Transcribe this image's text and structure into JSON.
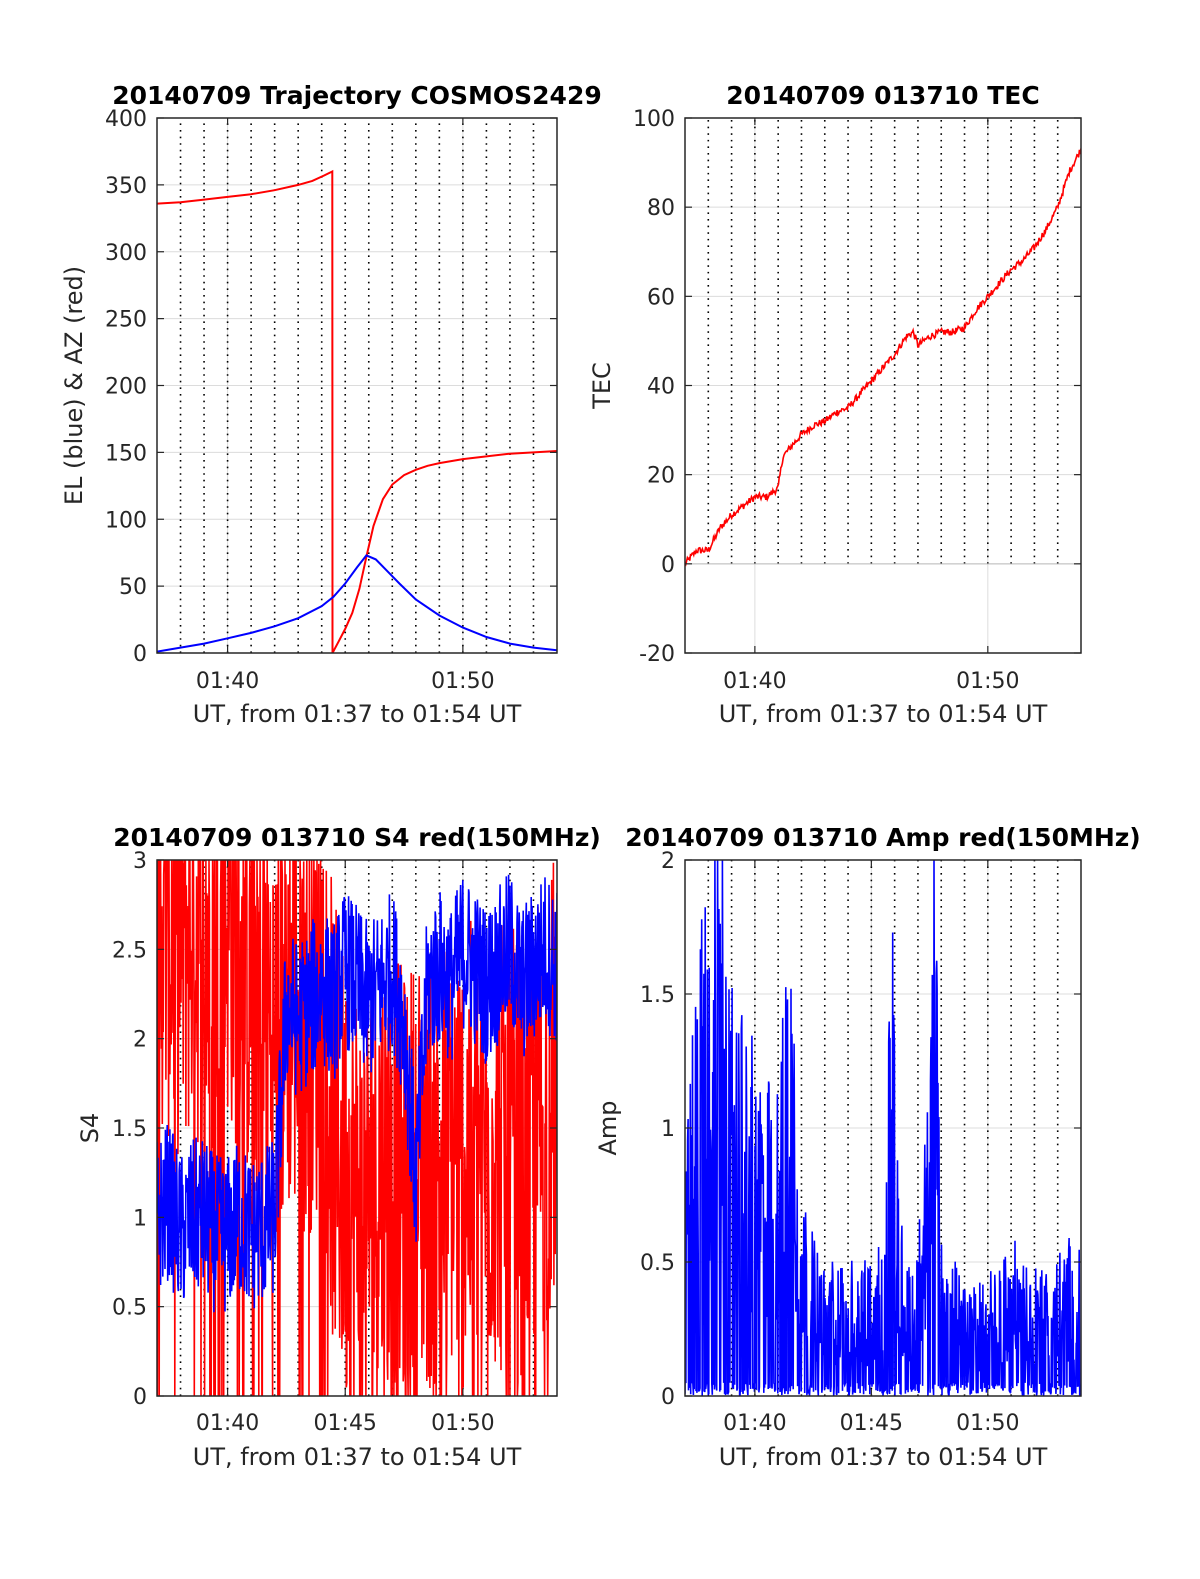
{
  "figure": {
    "background": "#ffffff",
    "axis_color": "#262626",
    "grid_solid_color": "#dcdcdc",
    "grid_dotted_color": "#000000"
  },
  "chart_data": [
    {
      "id": "trajectory",
      "type": "line",
      "title": "20140709 Trajectory COSMOS2429",
      "xlabel": "UT, from 01:37 to 01:54 UT",
      "ylabel": "EL (blue) & AZ (red)",
      "xlim": [
        97,
        114
      ],
      "ylim": [
        0,
        400
      ],
      "x_unit": "minutes after 00:00 UT",
      "x_ticks": [
        100,
        110
      ],
      "x_tick_labels": [
        "01:40",
        "01:50"
      ],
      "y_ticks": [
        0,
        50,
        100,
        150,
        200,
        250,
        300,
        350,
        400
      ],
      "y_tick_labels": [
        "0",
        "50",
        "100",
        "150",
        "200",
        "250",
        "300",
        "350",
        "400"
      ],
      "dotted_grid_x": [
        98,
        99,
        100,
        101,
        102,
        103,
        104,
        105,
        106,
        107,
        108,
        109,
        110,
        111,
        112,
        113
      ],
      "grid": true,
      "series": [
        {
          "color": "#ff0000",
          "x": [
            97,
            98,
            99,
            100,
            101,
            102,
            103,
            103.6,
            104.1,
            104.45,
            104.46,
            104.7,
            105.0,
            105.3,
            105.6,
            105.9,
            106.2,
            106.6,
            107.0,
            107.5,
            108.0,
            108.5,
            109.0,
            110,
            111,
            112,
            113,
            114
          ],
          "y": [
            336,
            337,
            339,
            341,
            343,
            346,
            350,
            353,
            357,
            360,
            0,
            8,
            18,
            30,
            48,
            72,
            95,
            115,
            126,
            133,
            137,
            140,
            142,
            145,
            147,
            149,
            150,
            151
          ]
        },
        {
          "color": "#0000ff",
          "x": [
            97,
            98,
            99,
            100,
            101,
            102,
            103,
            104,
            104.5,
            105,
            105.5,
            105.9,
            106.3,
            106.8,
            107.3,
            108,
            109,
            110,
            111,
            112,
            113,
            114
          ],
          "y": [
            1,
            4,
            7,
            11,
            15,
            20,
            26,
            35,
            42,
            52,
            64,
            73,
            70,
            61,
            52,
            40,
            28,
            19,
            12,
            7,
            4,
            2
          ]
        }
      ]
    },
    {
      "id": "tec",
      "type": "line",
      "title": "20140709 013710 TEC",
      "xlabel": "UT, from 01:37 to 01:54 UT",
      "ylabel": "TEC",
      "xlim": [
        97,
        114
      ],
      "ylim": [
        -20,
        100
      ],
      "x_unit": "minutes after 00:00 UT",
      "x_ticks": [
        100,
        110
      ],
      "x_tick_labels": [
        "01:40",
        "01:50"
      ],
      "y_ticks": [
        -20,
        0,
        20,
        40,
        60,
        80,
        100
      ],
      "y_tick_labels": [
        "-20",
        "0",
        "20",
        "40",
        "60",
        "80",
        "100"
      ],
      "dotted_grid_x": [
        98,
        99,
        100,
        101,
        102,
        103,
        104,
        105,
        106,
        107,
        108,
        109,
        110,
        111,
        112,
        113
      ],
      "dotted_grid_y_range": [
        0,
        100
      ],
      "grid": true,
      "series": [
        {
          "color": "#ff0000",
          "x": [
            97,
            97.5,
            98,
            98.5,
            99,
            99.5,
            100,
            100.5,
            101,
            101.2,
            101.5,
            102,
            102.5,
            103,
            103.5,
            104,
            104.5,
            105,
            105.5,
            106,
            106.5,
            106.8,
            107,
            107.5,
            108,
            108.5,
            109,
            109.5,
            110,
            110.5,
            111,
            111.5,
            112,
            112.5,
            113,
            113.5,
            114
          ],
          "y": [
            0,
            3,
            3,
            8,
            11,
            13,
            15,
            15,
            17,
            24,
            26,
            29,
            31,
            32,
            34,
            35,
            38,
            41,
            44,
            47,
            51,
            52,
            49,
            51,
            52,
            52,
            53,
            57,
            60,
            63,
            66,
            68,
            71,
            75,
            80,
            88,
            93
          ]
        }
      ]
    },
    {
      "id": "s4",
      "type": "line",
      "title": "20140709 013710 S4 red(150MHz)",
      "xlabel": "UT, from 01:37 to 01:54 UT",
      "ylabel": "S4",
      "xlim": [
        97,
        114
      ],
      "ylim": [
        0,
        3
      ],
      "x_unit": "minutes after 00:00 UT",
      "x_ticks": [
        100,
        105,
        110
      ],
      "x_tick_labels": [
        "01:40",
        "01:45",
        "01:50"
      ],
      "y_ticks": [
        0,
        0.5,
        1,
        1.5,
        2,
        2.5,
        3
      ],
      "y_tick_labels": [
        "0",
        "0.5",
        "1",
        "1.5",
        "2",
        "2.5",
        "3"
      ],
      "dotted_grid_x": [
        98,
        99,
        100,
        101,
        102,
        103,
        104,
        105,
        106,
        107,
        108,
        109,
        110,
        111,
        112,
        113
      ],
      "grid": true,
      "series": [
        {
          "color": "#ff0000",
          "x": [
            97,
            97.5,
            98,
            98.5,
            99,
            99.5,
            100,
            100.5,
            101,
            101.5,
            102,
            102.5,
            103,
            103.5,
            104,
            104.5,
            105,
            105.5,
            106,
            106.5,
            107,
            107.5,
            108,
            108.5,
            109,
            109.5,
            110,
            110.5,
            111,
            111.5,
            112,
            112.5,
            113,
            113.5,
            114
          ],
          "y": [
            2.8,
            2.7,
            2.6,
            2.7,
            2.6,
            2.5,
            2.8,
            2.6,
            2.4,
            2.3,
            1.9,
            2.3,
            2.2,
            2.2,
            2.3,
            1.5,
            1.2,
            1.1,
            1.1,
            1.3,
            1.2,
            1.1,
            1.2,
            1.3,
            1.3,
            1.4,
            1.3,
            1.4,
            1.4,
            1.4,
            1.3,
            1.4,
            1.5,
            1.6,
            1.8
          ]
        },
        {
          "color": "#0000ff",
          "x": [
            97,
            97.5,
            98,
            98.5,
            99,
            99.5,
            100,
            100.5,
            101,
            101.5,
            102,
            102.5,
            103,
            103.5,
            104,
            104.5,
            105,
            105.5,
            106,
            106.5,
            107,
            107.5,
            108,
            108.5,
            109,
            109.5,
            110,
            110.5,
            111,
            111.5,
            112,
            112.5,
            113,
            113.5,
            114
          ],
          "y": [
            1.0,
            1.1,
            0.9,
            1.0,
            1.0,
            0.9,
            0.9,
            1.0,
            0.9,
            0.95,
            1.0,
            2.2,
            2.1,
            2.2,
            2.3,
            2.2,
            2.4,
            2.3,
            2.2,
            2.3,
            2.4,
            2.1,
            1.2,
            2.3,
            2.4,
            2.3,
            2.5,
            2.4,
            2.3,
            2.4,
            2.5,
            2.3,
            2.4,
            2.5,
            2.4
          ]
        }
      ]
    },
    {
      "id": "amp",
      "type": "line",
      "title": "20140709 013710 Amp red(150MHz)",
      "xlabel": "UT, from 01:37 to 01:54 UT",
      "ylabel": "Amp",
      "xlim": [
        97,
        114
      ],
      "ylim": [
        0,
        2
      ],
      "x_unit": "minutes after 00:00 UT",
      "x_ticks": [
        100,
        105,
        110
      ],
      "x_tick_labels": [
        "01:40",
        "01:45",
        "01:50"
      ],
      "y_ticks": [
        0,
        0.5,
        1,
        1.5,
        2
      ],
      "y_tick_labels": [
        "0",
        "0.5",
        "1",
        "1.5",
        "2"
      ],
      "dotted_grid_x": [
        98,
        99,
        100,
        101,
        102,
        103,
        104,
        105,
        106,
        107,
        108,
        109,
        110,
        111,
        112,
        113
      ],
      "grid": true,
      "series": [
        {
          "color": "#0000ff",
          "x": [
            97,
            97.5,
            98,
            98.5,
            99,
            99.5,
            100,
            100.5,
            101,
            101.5,
            102,
            102.5,
            103,
            103.5,
            104,
            104.5,
            105,
            105.5,
            105.9,
            106.2,
            106.5,
            107,
            107.5,
            107.7,
            108,
            108.5,
            109,
            109.5,
            110,
            110.5,
            111,
            111.5,
            112,
            112.5,
            113,
            113.5,
            114
          ],
          "y": [
            0.9,
            1.4,
            1.7,
            1.8,
            1.3,
            1.2,
            1.1,
            1.0,
            1.0,
            1.7,
            0.7,
            0.5,
            0.4,
            0.45,
            0.45,
            0.4,
            0.45,
            0.5,
            1.75,
            0.6,
            0.45,
            0.5,
            1.0,
            1.9,
            0.5,
            0.45,
            0.35,
            0.35,
            0.4,
            0.4,
            0.5,
            0.45,
            0.4,
            0.4,
            0.45,
            0.5,
            0.5
          ]
        }
      ]
    }
  ]
}
